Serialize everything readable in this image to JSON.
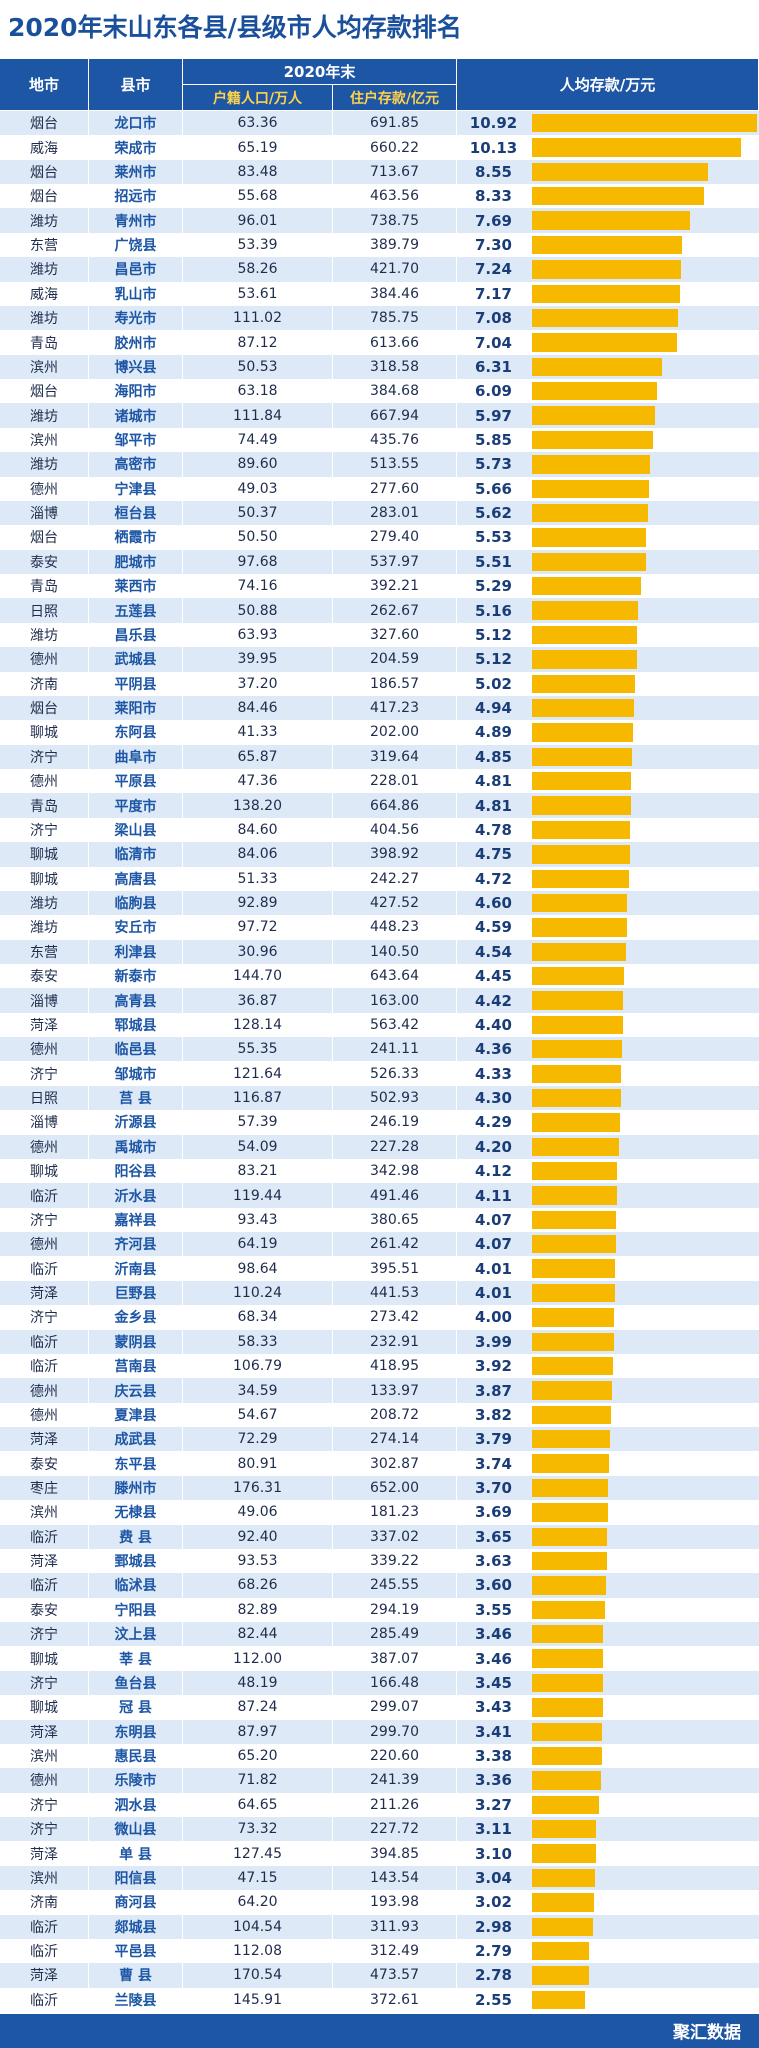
{
  "header": {
    "title": "2020年末山东各县/县级市人均存款排名"
  },
  "table": {
    "columns": {
      "city": "地市",
      "county": "县市",
      "group": "2020年末",
      "population": "户籍人口/万人",
      "deposits": "住户存款/亿元",
      "per_capita": "人均存款/万元"
    },
    "rows": [
      [
        "烟台",
        "龙口市",
        "63.36",
        "691.85",
        "10.92"
      ],
      [
        "威海",
        "荣成市",
        "65.19",
        "660.22",
        "10.13"
      ],
      [
        "烟台",
        "莱州市",
        "83.48",
        "713.67",
        "8.55"
      ],
      [
        "烟台",
        "招远市",
        "55.68",
        "463.56",
        "8.33"
      ],
      [
        "潍坊",
        "青州市",
        "96.01",
        "738.75",
        "7.69"
      ],
      [
        "东营",
        "广饶县",
        "53.39",
        "389.79",
        "7.30"
      ],
      [
        "潍坊",
        "昌邑市",
        "58.26",
        "421.70",
        "7.24"
      ],
      [
        "威海",
        "乳山市",
        "53.61",
        "384.46",
        "7.17"
      ],
      [
        "潍坊",
        "寿光市",
        "111.02",
        "785.75",
        "7.08"
      ],
      [
        "青岛",
        "胶州市",
        "87.12",
        "613.66",
        "7.04"
      ],
      [
        "滨州",
        "博兴县",
        "50.53",
        "318.58",
        "6.31"
      ],
      [
        "烟台",
        "海阳市",
        "63.18",
        "384.68",
        "6.09"
      ],
      [
        "潍坊",
        "诸城市",
        "111.84",
        "667.94",
        "5.97"
      ],
      [
        "滨州",
        "邹平市",
        "74.49",
        "435.76",
        "5.85"
      ],
      [
        "潍坊",
        "高密市",
        "89.60",
        "513.55",
        "5.73"
      ],
      [
        "德州",
        "宁津县",
        "49.03",
        "277.60",
        "5.66"
      ],
      [
        "淄博",
        "桓台县",
        "50.37",
        "283.01",
        "5.62"
      ],
      [
        "烟台",
        "栖霞市",
        "50.50",
        "279.40",
        "5.53"
      ],
      [
        "泰安",
        "肥城市",
        "97.68",
        "537.97",
        "5.51"
      ],
      [
        "青岛",
        "莱西市",
        "74.16",
        "392.21",
        "5.29"
      ],
      [
        "日照",
        "五莲县",
        "50.88",
        "262.67",
        "5.16"
      ],
      [
        "潍坊",
        "昌乐县",
        "63.93",
        "327.60",
        "5.12"
      ],
      [
        "德州",
        "武城县",
        "39.95",
        "204.59",
        "5.12"
      ],
      [
        "济南",
        "平阴县",
        "37.20",
        "186.57",
        "5.02"
      ],
      [
        "烟台",
        "莱阳市",
        "84.46",
        "417.23",
        "4.94"
      ],
      [
        "聊城",
        "东阿县",
        "41.33",
        "202.00",
        "4.89"
      ],
      [
        "济宁",
        "曲阜市",
        "65.87",
        "319.64",
        "4.85"
      ],
      [
        "德州",
        "平原县",
        "47.36",
        "228.01",
        "4.81"
      ],
      [
        "青岛",
        "平度市",
        "138.20",
        "664.86",
        "4.81"
      ],
      [
        "济宁",
        "梁山县",
        "84.60",
        "404.56",
        "4.78"
      ],
      [
        "聊城",
        "临清市",
        "84.06",
        "398.92",
        "4.75"
      ],
      [
        "聊城",
        "高唐县",
        "51.33",
        "242.27",
        "4.72"
      ],
      [
        "潍坊",
        "临朐县",
        "92.89",
        "427.52",
        "4.60"
      ],
      [
        "潍坊",
        "安丘市",
        "97.72",
        "448.23",
        "4.59"
      ],
      [
        "东营",
        "利津县",
        "30.96",
        "140.50",
        "4.54"
      ],
      [
        "泰安",
        "新泰市",
        "144.70",
        "643.64",
        "4.45"
      ],
      [
        "淄博",
        "高青县",
        "36.87",
        "163.00",
        "4.42"
      ],
      [
        "菏泽",
        "郓城县",
        "128.14",
        "563.42",
        "4.40"
      ],
      [
        "德州",
        "临邑县",
        "55.35",
        "241.11",
        "4.36"
      ],
      [
        "济宁",
        "邹城市",
        "121.64",
        "526.33",
        "4.33"
      ],
      [
        "日照",
        "莒 县",
        "116.87",
        "502.93",
        "4.30"
      ],
      [
        "淄博",
        "沂源县",
        "57.39",
        "246.19",
        "4.29"
      ],
      [
        "德州",
        "禹城市",
        "54.09",
        "227.28",
        "4.20"
      ],
      [
        "聊城",
        "阳谷县",
        "83.21",
        "342.98",
        "4.12"
      ],
      [
        "临沂",
        "沂水县",
        "119.44",
        "491.46",
        "4.11"
      ],
      [
        "济宁",
        "嘉祥县",
        "93.43",
        "380.65",
        "4.07"
      ],
      [
        "德州",
        "齐河县",
        "64.19",
        "261.42",
        "4.07"
      ],
      [
        "临沂",
        "沂南县",
        "98.64",
        "395.51",
        "4.01"
      ],
      [
        "菏泽",
        "巨野县",
        "110.24",
        "441.53",
        "4.01"
      ],
      [
        "济宁",
        "金乡县",
        "68.34",
        "273.42",
        "4.00"
      ],
      [
        "临沂",
        "蒙阴县",
        "58.33",
        "232.91",
        "3.99"
      ],
      [
        "临沂",
        "莒南县",
        "106.79",
        "418.95",
        "3.92"
      ],
      [
        "德州",
        "庆云县",
        "34.59",
        "133.97",
        "3.87"
      ],
      [
        "德州",
        "夏津县",
        "54.67",
        "208.72",
        "3.82"
      ],
      [
        "菏泽",
        "成武县",
        "72.29",
        "274.14",
        "3.79"
      ],
      [
        "泰安",
        "东平县",
        "80.91",
        "302.87",
        "3.74"
      ],
      [
        "枣庄",
        "滕州市",
        "176.31",
        "652.00",
        "3.70"
      ],
      [
        "滨州",
        "无棣县",
        "49.06",
        "181.23",
        "3.69"
      ],
      [
        "临沂",
        "费 县",
        "92.40",
        "337.02",
        "3.65"
      ],
      [
        "菏泽",
        "鄄城县",
        "93.53",
        "339.22",
        "3.63"
      ],
      [
        "临沂",
        "临沭县",
        "68.26",
        "245.55",
        "3.60"
      ],
      [
        "泰安",
        "宁阳县",
        "82.89",
        "294.19",
        "3.55"
      ],
      [
        "济宁",
        "汶上县",
        "82.44",
        "285.49",
        "3.46"
      ],
      [
        "聊城",
        "莘 县",
        "112.00",
        "387.07",
        "3.46"
      ],
      [
        "济宁",
        "鱼台县",
        "48.19",
        "166.48",
        "3.45"
      ],
      [
        "聊城",
        "冠 县",
        "87.24",
        "299.07",
        "3.43"
      ],
      [
        "菏泽",
        "东明县",
        "87.97",
        "299.70",
        "3.41"
      ],
      [
        "滨州",
        "惠民县",
        "65.20",
        "220.60",
        "3.38"
      ],
      [
        "德州",
        "乐陵市",
        "71.82",
        "241.39",
        "3.36"
      ],
      [
        "济宁",
        "泗水县",
        "64.65",
        "211.26",
        "3.27"
      ],
      [
        "济宁",
        "微山县",
        "73.32",
        "227.72",
        "3.11"
      ],
      [
        "菏泽",
        "单 县",
        "127.45",
        "394.85",
        "3.10"
      ],
      [
        "滨州",
        "阳信县",
        "47.15",
        "143.54",
        "3.04"
      ],
      [
        "济南",
        "商河县",
        "64.20",
        "193.98",
        "3.02"
      ],
      [
        "临沂",
        "郯城县",
        "104.54",
        "311.93",
        "2.98"
      ],
      [
        "临沂",
        "平邑县",
        "112.08",
        "312.49",
        "2.79"
      ],
      [
        "菏泽",
        "曹 县",
        "170.54",
        "473.57",
        "2.78"
      ],
      [
        "临沂",
        "兰陵县",
        "145.91",
        "372.61",
        "2.55"
      ]
    ]
  },
  "footer": {
    "brand": "聚汇数据"
  }
}
